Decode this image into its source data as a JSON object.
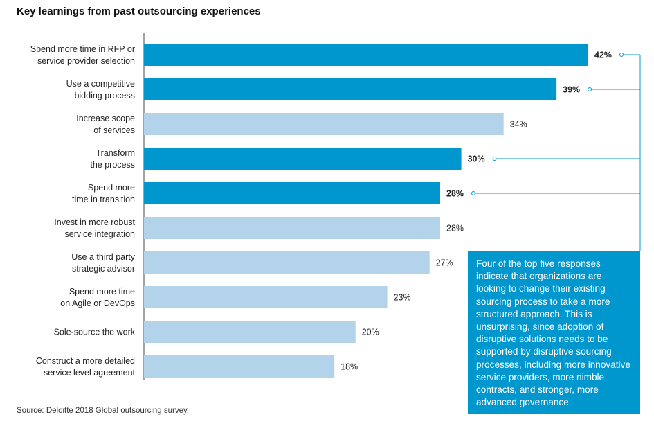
{
  "title": "Key learnings from past outsourcing experiences",
  "callout_text": "Four of the top five responses indicate that organizations are looking to change their existing sourcing process to take a more structured approach. This is unsurprising, since adoption of disruptive solutions needs to be supported by disruptive sourcing processes, including more innovative service providers, more nimble contracts, and stronger, more advanced governance.",
  "source": "Source: Deloitte 2018 Global outsourcing survey.",
  "colors": {
    "highlight": "#0097cf",
    "other": "#b3d3ea",
    "line": "#0097cf"
  },
  "chart_data": {
    "type": "bar",
    "orientation": "horizontal",
    "title": "Key learnings from past outsourcing experiences",
    "xlim": [
      0,
      42
    ],
    "grid": false,
    "legend": "none",
    "unit": "%",
    "categories": [
      [
        "Spend more time in RFP or",
        "service provider selection"
      ],
      [
        "Use a competitive",
        "bidding process"
      ],
      [
        "Increase scope",
        "of services"
      ],
      [
        "Transform",
        "the process"
      ],
      [
        "Spend more",
        "time in transition"
      ],
      [
        "Invest in more robust",
        "service integration"
      ],
      [
        "Use a third party",
        "strategic advisor"
      ],
      [
        "Spend more time",
        "on Agile or DevOps"
      ],
      [
        "Sole-source the work"
      ],
      [
        "Construct a more detailed",
        "service level agreement"
      ]
    ],
    "values": [
      42,
      39,
      34,
      30,
      28,
      28,
      27,
      23,
      20,
      18
    ],
    "highlighted": [
      true,
      true,
      false,
      true,
      true,
      false,
      false,
      false,
      false,
      false
    ]
  }
}
